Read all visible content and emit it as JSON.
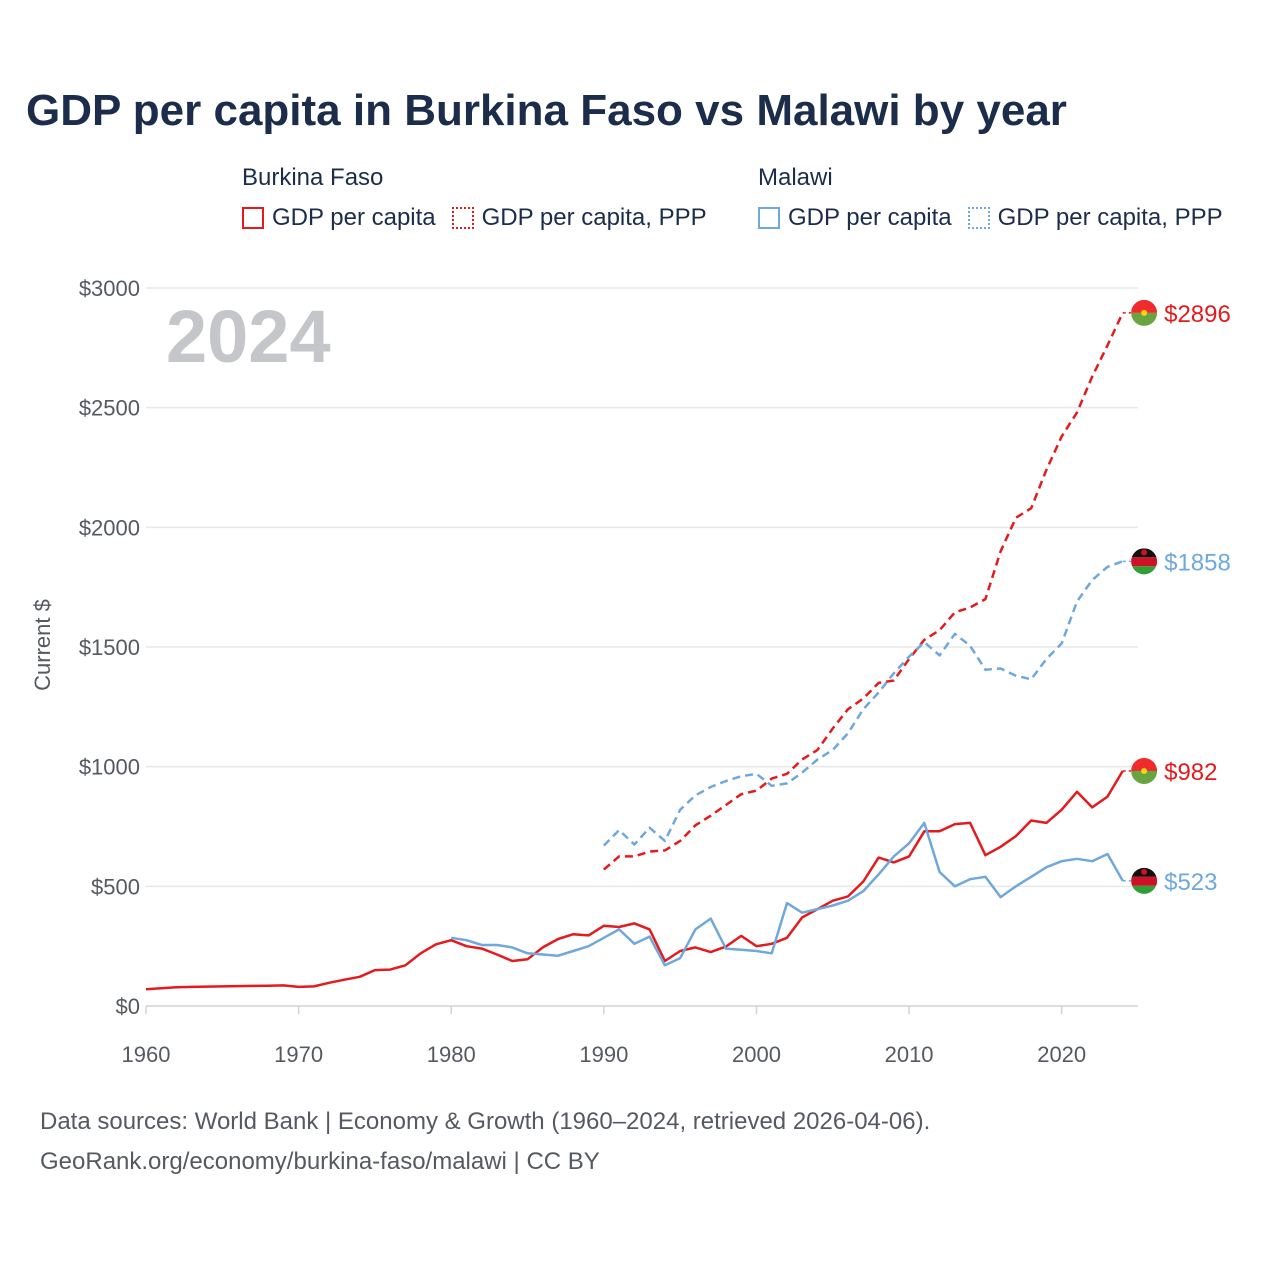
{
  "title": "GDP per capita in Burkina Faso vs Malawi by year",
  "legend": {
    "groups": [
      {
        "country": "Burkina Faso",
        "items": [
          {
            "label": "GDP per capita",
            "style": "solid"
          },
          {
            "label": "GDP per capita, PPP",
            "style": "dotted"
          }
        ],
        "color": "#e41a1c"
      },
      {
        "country": "Malawi",
        "items": [
          {
            "label": "GDP per capita",
            "style": "solid"
          },
          {
            "label": "GDP per capita, PPP",
            "style": "dotted"
          }
        ],
        "color": "#6fa8dc"
      }
    ]
  },
  "footer": {
    "line1": "Data sources: World Bank | Economy & Growth (1960–2024, retrieved 2026-04-06).",
    "line2": "GeoRank.org/economy/burkina-faso/malawi | CC BY"
  },
  "chart_data": {
    "type": "line",
    "title": "GDP per capita in Burkina Faso vs Malawi by year",
    "year_label": "2024",
    "xlabel": "",
    "ylabel": "Current $",
    "xlim": [
      1960,
      2025
    ],
    "ylim": [
      0,
      3000
    ],
    "x_ticks": [
      1960,
      1970,
      1980,
      1990,
      2000,
      2010,
      2020
    ],
    "y_ticks": [
      0,
      500,
      1000,
      1500,
      2000,
      2500,
      3000
    ],
    "y_tick_labels": [
      "$0",
      "$500",
      "$1000",
      "$1500",
      "$2000",
      "$2500",
      "$3000"
    ],
    "grid": true,
    "series": [
      {
        "name": "Burkina Faso GDP per capita",
        "country": "Burkina Faso",
        "color": "#e41a1c",
        "dash": "solid",
        "end_label": "$982",
        "flag": "burkina-faso-flag",
        "x": [
          1960,
          1961,
          1962,
          1963,
          1964,
          1965,
          1966,
          1967,
          1968,
          1969,
          1970,
          1971,
          1972,
          1973,
          1974,
          1975,
          1976,
          1977,
          1978,
          1979,
          1980,
          1981,
          1982,
          1983,
          1984,
          1985,
          1986,
          1987,
          1988,
          1989,
          1990,
          1991,
          1992,
          1993,
          1994,
          1995,
          1996,
          1997,
          1998,
          1999,
          2000,
          2001,
          2002,
          2003,
          2004,
          2005,
          2006,
          2007,
          2008,
          2009,
          2010,
          2011,
          2012,
          2013,
          2014,
          2015,
          2016,
          2017,
          2018,
          2019,
          2020,
          2021,
          2022,
          2023,
          2024
        ],
        "values": [
          70,
          74,
          78,
          80,
          81,
          82,
          83,
          84,
          85,
          86,
          80,
          82,
          97,
          110,
          122,
          150,
          152,
          170,
          220,
          258,
          275,
          250,
          240,
          215,
          188,
          195,
          245,
          280,
          300,
          295,
          335,
          330,
          345,
          320,
          188,
          230,
          245,
          225,
          248,
          293,
          250,
          260,
          285,
          370,
          405,
          440,
          458,
          520,
          620,
          600,
          625,
          730,
          730,
          760,
          765,
          630,
          665,
          710,
          775,
          765,
          820,
          895,
          830,
          875,
          982
        ]
      },
      {
        "name": "Burkina Faso GDP per capita, PPP",
        "country": "Burkina Faso",
        "color": "#e41a1c",
        "dash": "dashed",
        "end_label": "$2896",
        "flag": "burkina-faso-flag",
        "x": [
          1990,
          1991,
          1992,
          1993,
          1994,
          1995,
          1996,
          1997,
          1998,
          1999,
          2000,
          2001,
          2002,
          2003,
          2004,
          2005,
          2006,
          2007,
          2008,
          2009,
          2010,
          2011,
          2012,
          2013,
          2014,
          2015,
          2016,
          2017,
          2018,
          2019,
          2020,
          2021,
          2022,
          2023,
          2024
        ],
        "values": [
          570,
          625,
          625,
          645,
          650,
          690,
          755,
          795,
          840,
          885,
          900,
          950,
          970,
          1030,
          1070,
          1160,
          1240,
          1285,
          1350,
          1360,
          1450,
          1530,
          1570,
          1645,
          1665,
          1700,
          1900,
          2040,
          2080,
          2240,
          2380,
          2480,
          2630,
          2760,
          2896
        ]
      },
      {
        "name": "Malawi GDP per capita",
        "country": "Malawi",
        "color": "#6fa8dc",
        "dash": "solid",
        "end_label": "$523",
        "flag": "malawi-flag",
        "x": [
          1980,
          1981,
          1982,
          1983,
          1984,
          1985,
          1986,
          1987,
          1988,
          1989,
          1990,
          1991,
          1992,
          1993,
          1994,
          1995,
          1996,
          1997,
          1998,
          1999,
          2000,
          2001,
          2002,
          2003,
          2004,
          2005,
          2006,
          2007,
          2008,
          2009,
          2010,
          2011,
          2012,
          2013,
          2014,
          2015,
          2016,
          2017,
          2018,
          2019,
          2020,
          2021,
          2022,
          2023,
          2024
        ],
        "values": [
          285,
          275,
          255,
          255,
          245,
          220,
          215,
          210,
          230,
          250,
          285,
          320,
          260,
          290,
          170,
          200,
          320,
          365,
          240,
          235,
          230,
          220,
          430,
          390,
          405,
          420,
          440,
          480,
          550,
          625,
          680,
          765,
          560,
          500,
          530,
          540,
          455,
          500,
          540,
          580,
          605,
          615,
          605,
          635,
          523
        ]
      },
      {
        "name": "Malawi GDP per capita, PPP",
        "country": "Malawi",
        "color": "#6fa8dc",
        "dash": "dashed",
        "end_label": "$1858",
        "flag": "malawi-flag",
        "x": [
          1990,
          1991,
          1992,
          1993,
          1994,
          1995,
          1996,
          1997,
          1998,
          1999,
          2000,
          2001,
          2002,
          2003,
          2004,
          2005,
          2006,
          2007,
          2008,
          2009,
          2010,
          2011,
          2012,
          2013,
          2014,
          2015,
          2016,
          2017,
          2018,
          2019,
          2020,
          2021,
          2022,
          2023,
          2024
        ],
        "values": [
          670,
          735,
          675,
          745,
          690,
          820,
          880,
          915,
          940,
          960,
          970,
          920,
          930,
          975,
          1030,
          1070,
          1140,
          1240,
          1310,
          1390,
          1460,
          1520,
          1465,
          1555,
          1505,
          1405,
          1410,
          1380,
          1365,
          1450,
          1515,
          1690,
          1780,
          1835,
          1858
        ]
      }
    ]
  }
}
